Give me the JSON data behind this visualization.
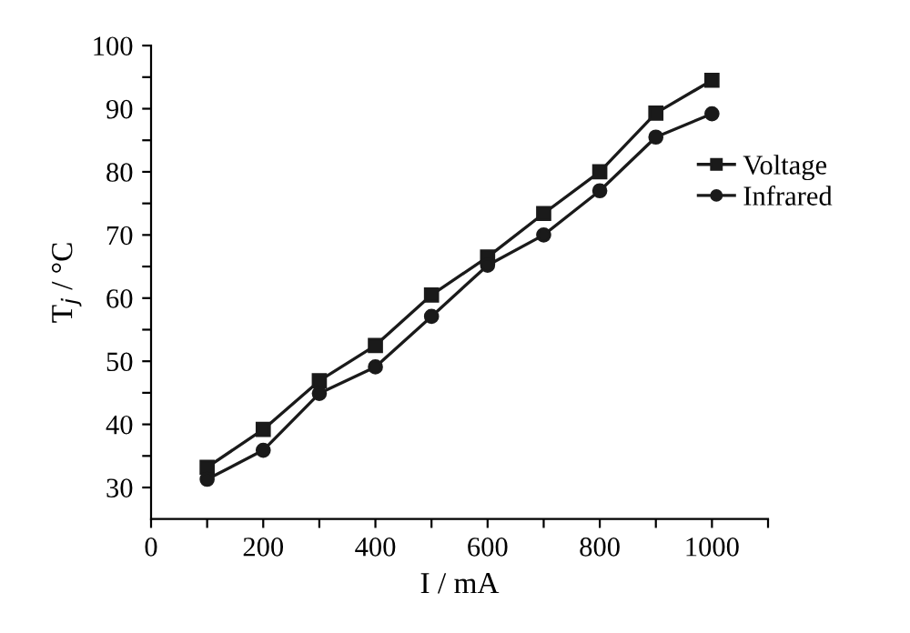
{
  "chart_data": {
    "type": "line",
    "xlabel": "I / mA",
    "ylabel": "T$_{j}$ / °C",
    "x": [
      100,
      200,
      300,
      400,
      500,
      600,
      700,
      800,
      900,
      1000
    ],
    "series": [
      {
        "name": "Voltage",
        "color": "#1a1a1a",
        "marker": "square",
        "values": [
          33.2,
          39.2,
          46.9,
          52.5,
          60.5,
          66.5,
          73.4,
          80.0,
          89.3,
          94.5
        ]
      },
      {
        "name": "Infrared",
        "color": "#1a1a1a",
        "marker": "circle",
        "values": [
          31.3,
          35.9,
          44.9,
          49.1,
          57.1,
          65.2,
          70.0,
          77.0,
          85.5,
          89.2
        ]
      }
    ],
    "xlim": [
      0,
      1100
    ],
    "xticks": [
      0,
      {
        "value": 100,
        "label": null
      },
      200,
      {
        "value": 300,
        "label": null
      },
      400,
      {
        "value": 500,
        "label": null
      },
      600,
      {
        "value": 700,
        "label": null
      },
      800,
      {
        "value": 900,
        "label": null
      },
      1000,
      {
        "value": 1100,
        "label": null
      }
    ],
    "ylim": [
      25,
      100
    ],
    "yticks": [
      30,
      {
        "value": 35,
        "label": null
      },
      40,
      {
        "value": 45,
        "label": null
      },
      50,
      {
        "value": 55,
        "label": null
      },
      60,
      {
        "value": 65,
        "label": null
      },
      70,
      {
        "value": 75,
        "label": null
      },
      80,
      {
        "value": 85,
        "label": null
      },
      90,
      {
        "value": 95,
        "label": null
      },
      100
    ],
    "legend": "right",
    "grid": false,
    "line_style": "solid"
  }
}
